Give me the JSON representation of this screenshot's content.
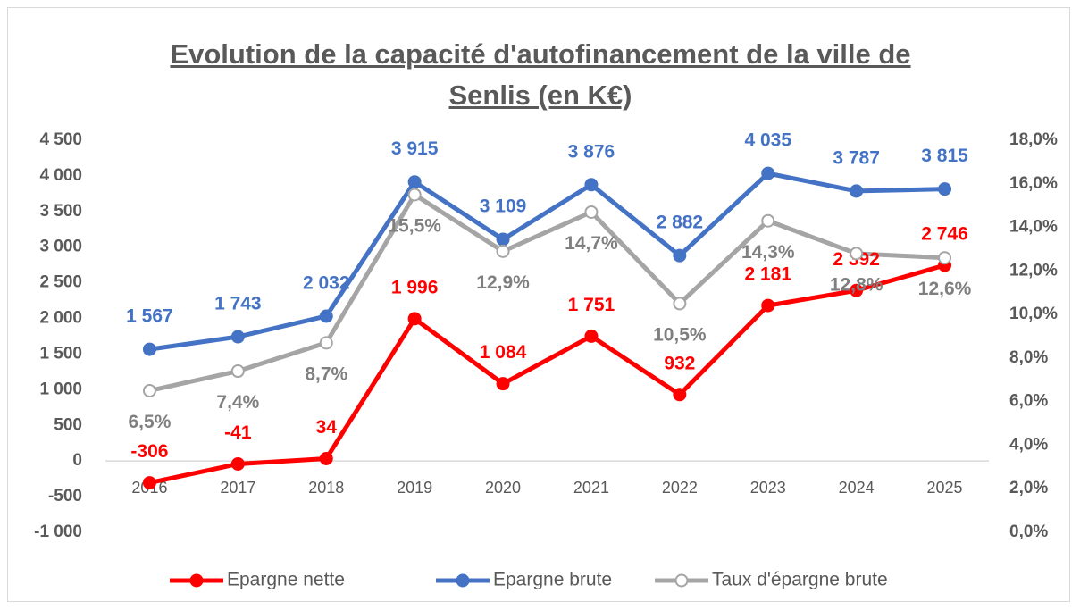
{
  "chart_data": {
    "type": "line",
    "title": "Evolution de la capacité d'autofinancement de la ville de Senlis (en K€)",
    "categories": [
      "2016",
      "2017",
      "2018",
      "2019",
      "2020",
      "2021",
      "2022",
      "2023",
      "2024",
      "2025"
    ],
    "series": [
      {
        "name": "Epargne nette",
        "color": "#ff0000",
        "label_color": "#ff0000",
        "marker_fill": "#ff0000",
        "values": [
          -306,
          -41,
          34,
          1996,
          1084,
          1751,
          932,
          2181,
          2392,
          2746
        ],
        "value_labels": [
          "-306",
          "-41",
          "34",
          "1 996",
          "1 084",
          "1 751",
          "932",
          "2 181",
          "2 392",
          "2 746"
        ]
      },
      {
        "name": "Epargne brute",
        "color": "#4472c4",
        "label_color": "#4472c4",
        "marker_fill": "#4472c4",
        "values": [
          1567,
          1743,
          2032,
          3915,
          3109,
          3876,
          2882,
          4035,
          3787,
          3815
        ],
        "value_labels": [
          "1 567",
          "1 743",
          "2 032",
          "3 915",
          "3 109",
          "3 876",
          "2 882",
          "4 035",
          "3 787",
          "3 815"
        ]
      },
      {
        "name": "Taux d'épargne brute",
        "color": "#a5a5a5",
        "label_color": "#7f7f7f",
        "marker_fill": "#ffffff",
        "axis": "y2",
        "values": [
          6.5,
          7.4,
          8.7,
          15.5,
          12.9,
          14.7,
          10.5,
          14.3,
          12.8,
          12.6
        ],
        "value_labels": [
          "6,5%",
          "7,4%",
          "8,7%",
          "15,5%",
          "12,9%",
          "14,7%",
          "10,5%",
          "14,3%",
          "12,8%",
          "12,6%"
        ]
      }
    ],
    "ylim": [
      -1000,
      4500
    ],
    "yticks": [
      {
        "value": -1000,
        "label": "-1 000"
      },
      -500,
      0,
      500,
      {
        "value": 1000,
        "label": "1 000"
      },
      {
        "value": 1500,
        "label": "1 500"
      },
      {
        "value": 2000,
        "label": "2 000"
      },
      {
        "value": 2500,
        "label": "2 500"
      },
      {
        "value": 3000,
        "label": "3 000"
      },
      {
        "value": 3500,
        "label": "3 500"
      },
      {
        "value": 4000,
        "label": "4 000"
      },
      {
        "value": 4500,
        "label": "4 500"
      }
    ],
    "y2lim": [
      0,
      18
    ],
    "y2ticks": [
      {
        "value": 0,
        "label": "0,0%"
      },
      {
        "value": 2,
        "label": "2,0%"
      },
      {
        "value": 4,
        "label": "4,0%"
      },
      {
        "value": 6,
        "label": "6,0%"
      },
      {
        "value": 8,
        "label": "8,0%"
      },
      {
        "value": 10,
        "label": "10,0%"
      },
      {
        "value": 12,
        "label": "12,0%"
      },
      {
        "value": 14,
        "label": "14,0%"
      },
      {
        "value": 16,
        "label": "16,0%"
      },
      {
        "value": 18,
        "label": "18,0%"
      }
    ],
    "grid": false,
    "legend": "bottom"
  }
}
